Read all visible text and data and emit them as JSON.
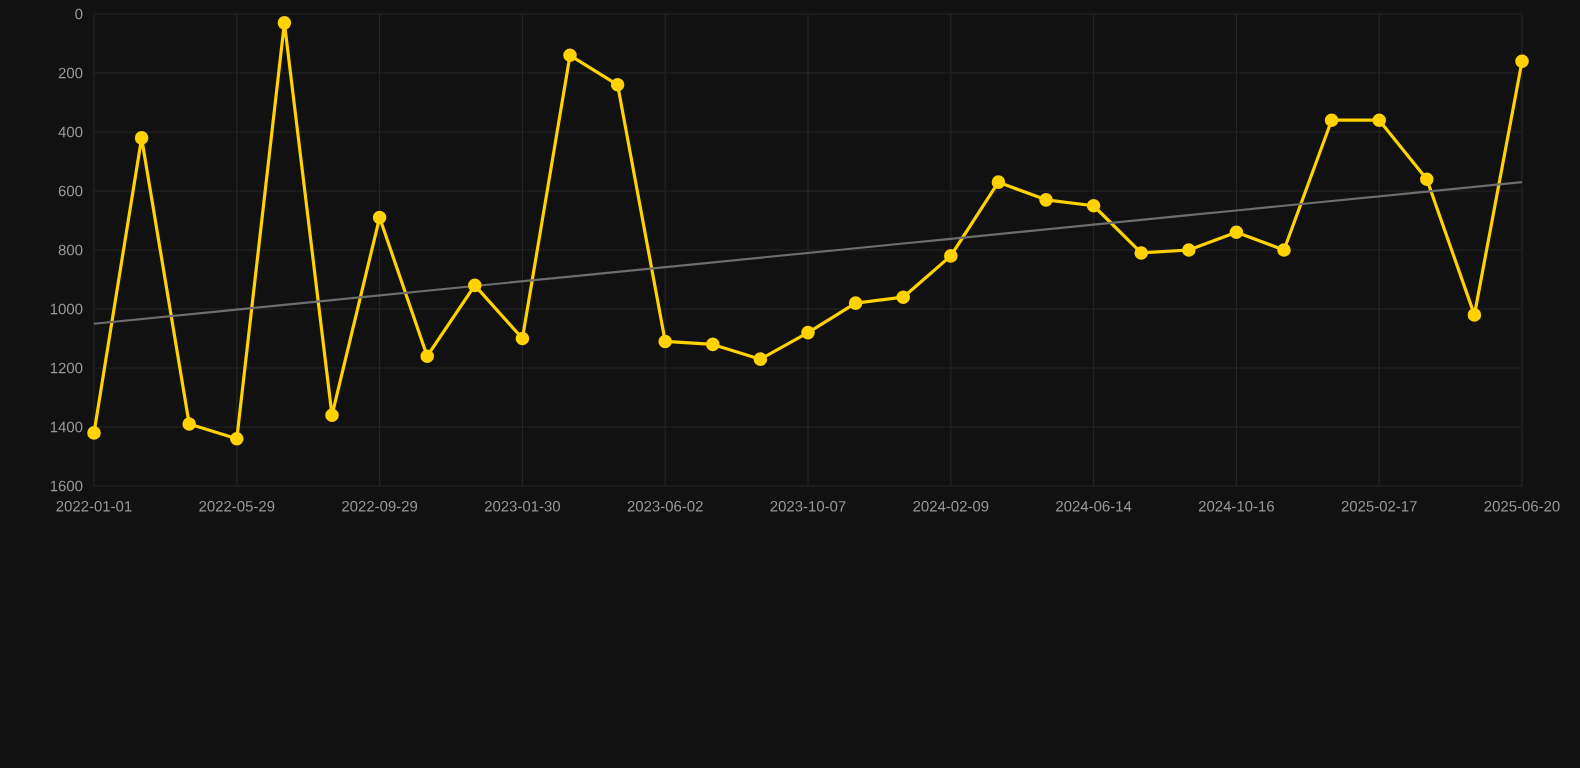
{
  "chart_data": {
    "type": "line",
    "categories": [
      "2022-01-01",
      null,
      null,
      "2022-05-29",
      null,
      null,
      "2022-09-29",
      null,
      null,
      "2023-01-30",
      null,
      null,
      "2023-06-02",
      null,
      null,
      "2023-10-07",
      null,
      null,
      "2024-02-09",
      null,
      null,
      "2024-06-14",
      null,
      null,
      "2024-10-16",
      null,
      null,
      "2025-02-17",
      null,
      null,
      "2025-06-20"
    ],
    "series": [
      {
        "color": "#ffd200",
        "marker": "circle",
        "line_style": "solid",
        "values": [
          1420,
          420,
          1390,
          1440,
          30,
          1360,
          690,
          1160,
          920,
          1100,
          140,
          240,
          1110,
          1120,
          1170,
          1080,
          980,
          960,
          820,
          570,
          630,
          650,
          810,
          800,
          740,
          800,
          360,
          360,
          560,
          1020,
          160
        ]
      },
      {
        "type": "line",
        "color": "#6e6e6e",
        "marker": "none",
        "line_style": "solid",
        "values": [
          1050,
          1034,
          1018,
          1002,
          986,
          970,
          954,
          938,
          922,
          906,
          890,
          874,
          858,
          842,
          826,
          810,
          794,
          778,
          762,
          746,
          730,
          714,
          698,
          682,
          666,
          650,
          634,
          618,
          602,
          586,
          570
        ]
      }
    ],
    "ylim": [
      1600,
      0
    ],
    "yticks": [
      0,
      200,
      400,
      600,
      800,
      1000,
      1200,
      1400,
      1600
    ],
    "grid": true
  }
}
